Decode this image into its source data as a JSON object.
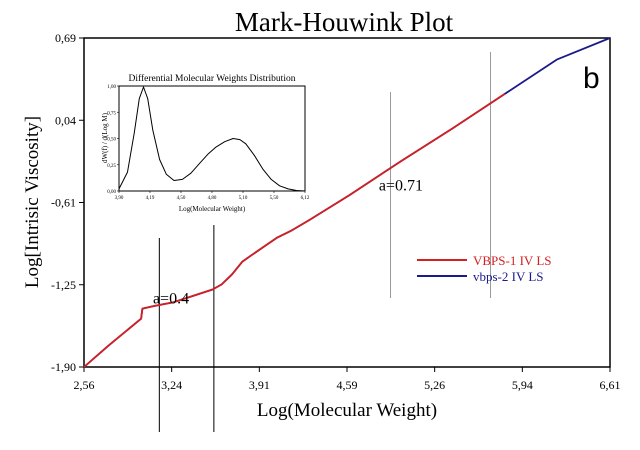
{
  "chart_data": [
    {
      "type": "line",
      "title": "Mark-Houwink Plot",
      "xlabel": "Log(Molecular Weight)",
      "ylabel": "Log[Intrisic Viscosity]",
      "xlim": [
        2.56,
        6.61
      ],
      "ylim": [
        -1.9,
        0.69
      ],
      "x_ticks": [
        "2,56",
        "3,24",
        "3,91",
        "4,59",
        "5,26",
        "5,94",
        "6,61"
      ],
      "y_ticks": [
        "0,69",
        "0,04",
        "-0,61",
        "-1,25",
        "-1,90"
      ],
      "panel_label": "b",
      "annotations": [
        {
          "text": "a=0.4",
          "x": 3.23,
          "y": -1.4
        },
        {
          "text": "a=0.71",
          "x": 5.0,
          "y": -0.51
        }
      ],
      "vertical_markers": [
        3.14,
        3.56,
        4.92,
        5.69
      ],
      "series": [
        {
          "name": "VBPS-1 IV LS",
          "color": "#d42020",
          "x": [
            2.56,
            2.75,
            3.0,
            3.01,
            3.1,
            3.25,
            3.4,
            3.55,
            3.62,
            3.7,
            3.78,
            3.85,
            3.95,
            4.05,
            4.15,
            4.3,
            4.6,
            5.0,
            5.4,
            5.8
          ],
          "y": [
            -1.9,
            -1.73,
            -1.52,
            -1.44,
            -1.42,
            -1.39,
            -1.34,
            -1.29,
            -1.25,
            -1.17,
            -1.07,
            -1.02,
            -0.95,
            -0.88,
            -0.83,
            -0.74,
            -0.55,
            -0.28,
            -0.02,
            0.25
          ]
        },
        {
          "name": "vbps-2 IV LS",
          "color": "#1a1a8c",
          "x": [
            2.56,
            2.75,
            3.0,
            3.01,
            3.1,
            3.25,
            3.4,
            3.55,
            3.62,
            3.7,
            3.78,
            3.85,
            3.95,
            4.05,
            4.15,
            4.3,
            4.6,
            5.0,
            5.4,
            5.8,
            6.2,
            6.61
          ],
          "y": [
            -1.9,
            -1.73,
            -1.52,
            -1.44,
            -1.42,
            -1.39,
            -1.34,
            -1.29,
            -1.25,
            -1.17,
            -1.07,
            -1.02,
            -0.95,
            -0.88,
            -0.83,
            -0.74,
            -0.55,
            -0.28,
            -0.02,
            0.25,
            0.52,
            0.69
          ]
        }
      ]
    },
    {
      "type": "line",
      "title": "Differential Molecular Weights Distribution",
      "xlabel": "Log(Molecular Weight)",
      "ylabel": "dW(f) / d(Log M)",
      "xlim": [
        3.9,
        6.1
      ],
      "ylim": [
        0.0,
        1.0
      ],
      "x_ticks": [
        "3,90",
        "4,19",
        "4,50",
        "4,80",
        "5,10",
        "5,50",
        "6,12"
      ],
      "y_ticks": [
        "1,00",
        "0,75",
        "0,50",
        "0,25",
        "0,00"
      ],
      "series": [
        {
          "name": "",
          "color": "#000000",
          "x": [
            3.9,
            4.0,
            4.08,
            4.14,
            4.19,
            4.24,
            4.3,
            4.38,
            4.46,
            4.55,
            4.65,
            4.75,
            4.85,
            4.95,
            5.05,
            5.15,
            5.25,
            5.33,
            5.4,
            5.5,
            5.6,
            5.7,
            5.8,
            5.9,
            6.0,
            6.1
          ],
          "y": [
            0.02,
            0.18,
            0.55,
            0.88,
            0.99,
            0.88,
            0.58,
            0.3,
            0.16,
            0.1,
            0.11,
            0.17,
            0.26,
            0.35,
            0.42,
            0.47,
            0.5,
            0.49,
            0.45,
            0.34,
            0.21,
            0.11,
            0.05,
            0.02,
            0.005,
            0.0
          ]
        }
      ]
    }
  ]
}
